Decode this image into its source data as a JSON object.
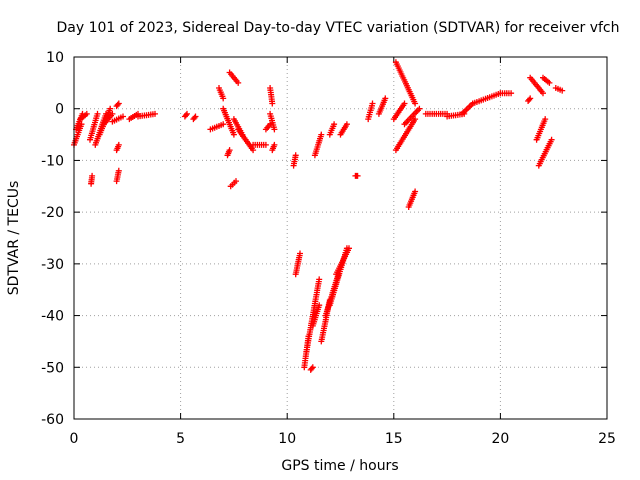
{
  "chart_data": {
    "type": "scatter",
    "title": "Day 101 of 2023, Sidereal Day-to-day VTEC variation (SDTVAR) for receiver vfch",
    "xlabel": "GPS time / hours",
    "ylabel": "SDTVAR / TECUs",
    "xlim": [
      0,
      25
    ],
    "ylim": [
      -60,
      10
    ],
    "xticks": [
      0,
      5,
      10,
      15,
      20,
      25
    ],
    "yticks": [
      -60,
      -50,
      -40,
      -30,
      -20,
      -10,
      0,
      10
    ],
    "grid": true,
    "marker": "+",
    "marker_color": "#ff0000",
    "segments": [
      {
        "x0": 0.0,
        "x1": 0.35,
        "y0": -7,
        "y1": -3
      },
      {
        "x0": 0.1,
        "x1": 0.4,
        "y0": -4,
        "y1": -1
      },
      {
        "x0": 0.3,
        "x1": 0.6,
        "y0": -2,
        "y1": -1
      },
      {
        "x0": 0.8,
        "x1": 0.85,
        "y0": -14.5,
        "y1": -13
      },
      {
        "x0": 0.75,
        "x1": 1.1,
        "y0": -6,
        "y1": -1
      },
      {
        "x0": 1.0,
        "x1": 1.5,
        "y0": -7,
        "y1": -1
      },
      {
        "x0": 1.2,
        "x1": 1.7,
        "y0": -5,
        "y1": 0
      },
      {
        "x0": 1.4,
        "x1": 1.8,
        "y0": -3,
        "y1": -1
      },
      {
        "x0": 2.0,
        "x1": 2.1,
        "y0": -14,
        "y1": -12
      },
      {
        "x0": 2.0,
        "x1": 2.1,
        "y0": -8,
        "y1": -7
      },
      {
        "x0": 2.0,
        "x1": 2.1,
        "y0": 0.5,
        "y1": 1
      },
      {
        "x0": 1.8,
        "x1": 2.3,
        "y0": -2.5,
        "y1": -1.5
      },
      {
        "x0": 2.6,
        "x1": 3.0,
        "y0": -2,
        "y1": -1
      },
      {
        "x0": 3.0,
        "x1": 3.8,
        "y0": -1.5,
        "y1": -1
      },
      {
        "x0": 5.2,
        "x1": 5.3,
        "y0": -1.5,
        "y1": -1
      },
      {
        "x0": 5.6,
        "x1": 5.7,
        "y0": -2,
        "y1": -1.5
      },
      {
        "x0": 6.4,
        "x1": 7.0,
        "y0": -4,
        "y1": -3
      },
      {
        "x0": 6.8,
        "x1": 7.0,
        "y0": 4,
        "y1": 2
      },
      {
        "x0": 7.0,
        "x1": 7.5,
        "y0": 0,
        "y1": -5
      },
      {
        "x0": 7.2,
        "x1": 7.3,
        "y0": -9,
        "y1": -8
      },
      {
        "x0": 7.35,
        "x1": 7.6,
        "y0": -15,
        "y1": -14
      },
      {
        "x0": 7.3,
        "x1": 7.7,
        "y0": 7,
        "y1": 5
      },
      {
        "x0": 7.5,
        "x1": 7.9,
        "y0": -2,
        "y1": -5
      },
      {
        "x0": 7.7,
        "x1": 8.4,
        "y0": -4,
        "y1": -8
      },
      {
        "x0": 8.4,
        "x1": 9.0,
        "y0": -7,
        "y1": -7
      },
      {
        "x0": 9.0,
        "x1": 9.2,
        "y0": -4,
        "y1": -3
      },
      {
        "x0": 9.2,
        "x1": 9.3,
        "y0": 4,
        "y1": 1
      },
      {
        "x0": 9.2,
        "x1": 9.4,
        "y0": -1,
        "y1": -4
      },
      {
        "x0": 9.3,
        "x1": 9.4,
        "y0": -8,
        "y1": -7
      },
      {
        "x0": 10.3,
        "x1": 10.4,
        "y0": -11,
        "y1": -9
      },
      {
        "x0": 10.4,
        "x1": 10.6,
        "y0": -32,
        "y1": -28
      },
      {
        "x0": 10.8,
        "x1": 11.0,
        "y0": -50,
        "y1": -44
      },
      {
        "x0": 11.1,
        "x1": 11.2,
        "y0": -50.5,
        "y1": -50
      },
      {
        "x0": 10.9,
        "x1": 11.5,
        "y0": -47,
        "y1": -33
      },
      {
        "x0": 11.2,
        "x1": 11.5,
        "y0": -42,
        "y1": -38
      },
      {
        "x0": 11.3,
        "x1": 11.6,
        "y0": -9,
        "y1": -5
      },
      {
        "x0": 11.6,
        "x1": 12.0,
        "y0": -45,
        "y1": -37
      },
      {
        "x0": 11.8,
        "x1": 12.4,
        "y0": -40,
        "y1": -32
      },
      {
        "x0": 12.0,
        "x1": 12.8,
        "y0": -38,
        "y1": -27
      },
      {
        "x0": 12.3,
        "x1": 12.9,
        "y0": -32,
        "y1": -27
      },
      {
        "x0": 12.0,
        "x1": 12.2,
        "y0": -5,
        "y1": -3
      },
      {
        "x0": 12.5,
        "x1": 12.8,
        "y0": -5,
        "y1": -3
      },
      {
        "x0": 13.2,
        "x1": 13.3,
        "y0": -13,
        "y1": -13
      },
      {
        "x0": 13.8,
        "x1": 14.0,
        "y0": -2,
        "y1": 1
      },
      {
        "x0": 14.3,
        "x1": 14.6,
        "y0": -1,
        "y1": 2
      },
      {
        "x0": 15.0,
        "x1": 15.5,
        "y0": -2,
        "y1": 1
      },
      {
        "x0": 15.1,
        "x1": 16.0,
        "y0": 9,
        "y1": 1
      },
      {
        "x0": 15.1,
        "x1": 16.0,
        "y0": -8,
        "y1": -2
      },
      {
        "x0": 15.5,
        "x1": 16.2,
        "y0": -3,
        "y1": 0
      },
      {
        "x0": 15.7,
        "x1": 16.0,
        "y0": -19,
        "y1": -16
      },
      {
        "x0": 16.5,
        "x1": 17.5,
        "y0": -1,
        "y1": -1
      },
      {
        "x0": 17.5,
        "x1": 18.3,
        "y0": -1.5,
        "y1": -1
      },
      {
        "x0": 18.2,
        "x1": 18.7,
        "y0": -1,
        "y1": 1
      },
      {
        "x0": 18.7,
        "x1": 20.0,
        "y0": 1,
        "y1": 3
      },
      {
        "x0": 20.0,
        "x1": 20.5,
        "y0": 3,
        "y1": 3
      },
      {
        "x0": 21.3,
        "x1": 21.4,
        "y0": 1.5,
        "y1": 2
      },
      {
        "x0": 21.4,
        "x1": 22.0,
        "y0": 6,
        "y1": 3
      },
      {
        "x0": 21.7,
        "x1": 22.1,
        "y0": -6,
        "y1": -2
      },
      {
        "x0": 21.8,
        "x1": 22.4,
        "y0": -11,
        "y1": -6
      },
      {
        "x0": 22.0,
        "x1": 22.3,
        "y0": 6,
        "y1": 5
      },
      {
        "x0": 22.6,
        "x1": 22.9,
        "y0": 4,
        "y1": 3.5
      }
    ]
  }
}
